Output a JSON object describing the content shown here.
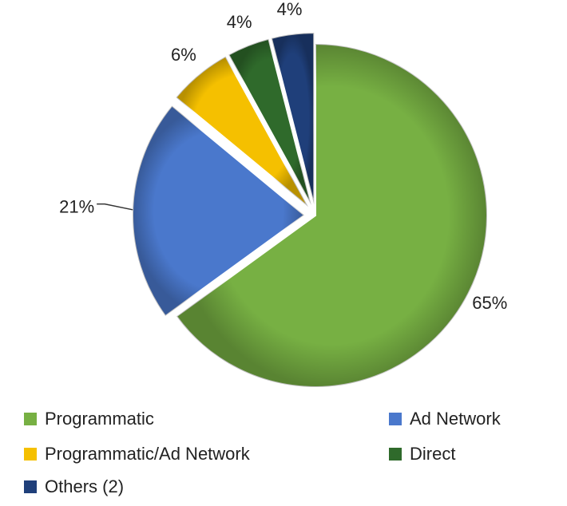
{
  "chart_data": {
    "type": "pie",
    "categories": [
      "Programmatic",
      "Ad Network",
      "Programmatic/Ad Network",
      "Direct",
      "Others (2)"
    ],
    "values": [
      65,
      21,
      6,
      4,
      4
    ],
    "value_labels": [
      "65%",
      "21%",
      "6%",
      "4%",
      "4%"
    ],
    "colors": [
      "#77b043",
      "#4a78cc",
      "#f5c000",
      "#2f6a2b",
      "#1f3f7a"
    ]
  }
}
